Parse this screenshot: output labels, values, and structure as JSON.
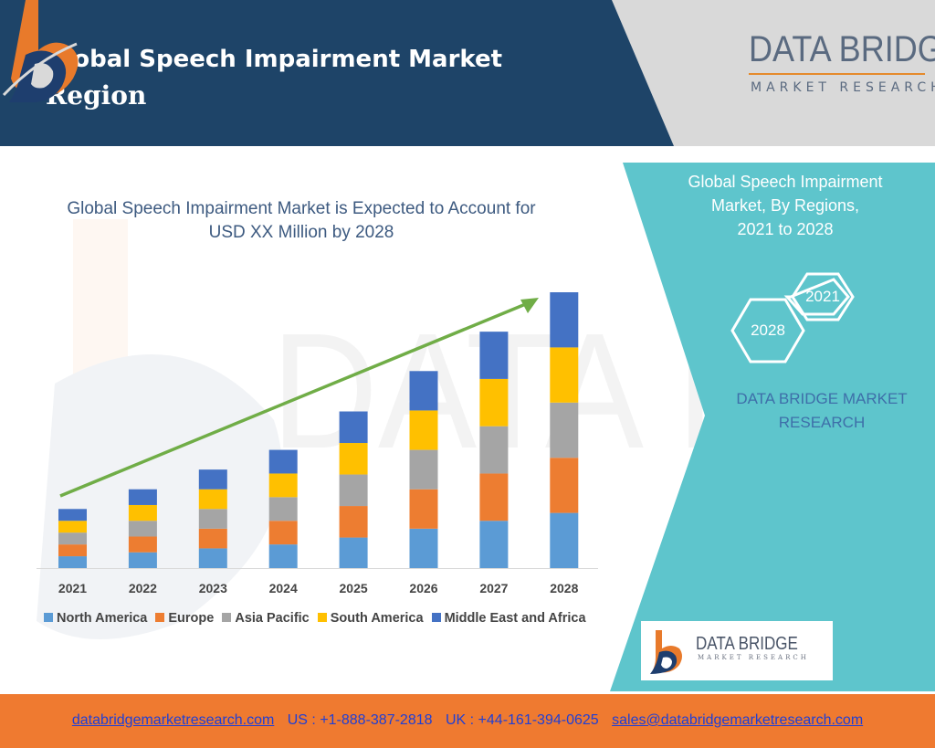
{
  "header": {
    "title_line1": "Global Speech Impairment Market",
    "title_line2": "Region",
    "colors": {
      "navy": "#1e4468",
      "grey": "#d9d9d9"
    }
  },
  "logo": {
    "brand": "DATA BRIDGE",
    "sub": "MARKET RESEARCH",
    "colors": {
      "orange": "#e87a2b",
      "navy": "#1e3e6e"
    }
  },
  "chart_data": {
    "type": "bar",
    "stacked": true,
    "title": "Global Speech Impairment Market is Expected to Account for USD XX Million by 2028",
    "title_line1": "Global Speech Impairment Market is Expected to Account for",
    "title_line2": "USD XX Million by 2028",
    "categories": [
      "2021",
      "2022",
      "2023",
      "2024",
      "2025",
      "2026",
      "2027",
      "2028"
    ],
    "series": [
      {
        "name": "North America",
        "color": "#5b9bd5",
        "values": [
          12,
          16,
          20,
          24,
          31,
          40,
          48,
          56
        ]
      },
      {
        "name": "Europe",
        "color": "#ed7d31",
        "values": [
          12,
          16,
          20,
          24,
          32,
          40,
          48,
          56
        ]
      },
      {
        "name": "Asia Pacific",
        "color": "#a5a5a5",
        "values": [
          12,
          16,
          20,
          24,
          32,
          40,
          48,
          56
        ]
      },
      {
        "name": "South America",
        "color": "#ffc000",
        "values": [
          12,
          16,
          20,
          24,
          32,
          40,
          48,
          56
        ]
      },
      {
        "name": "Middle East and Africa",
        "color": "#4472c4",
        "values": [
          12,
          16,
          20,
          24,
          32,
          40,
          48,
          56
        ]
      }
    ],
    "ylim": [
      0,
      280
    ],
    "grid": false,
    "legend": "bottom",
    "trend_arrow_color": "#70ad47"
  },
  "panel": {
    "title": [
      "Global Speech Impairment",
      "Market, By Regions,",
      "2021 to 2028"
    ],
    "hex_1": "2021",
    "hex_2": "2028",
    "brand": [
      "DATA BRIDGE MARKET",
      "RESEARCH"
    ],
    "bottom_logo_brand": "DATA BRIDGE",
    "bottom_logo_sub": "MARKET RESEARCH",
    "colors": {
      "teal": "#5ec5cc"
    }
  },
  "footer": {
    "website": "databridgemarketresearch.com",
    "us_phone": "US : +1-888-387-2818",
    "uk_phone": "UK : +44-161-394-0625",
    "email": "sales@databridgemarketresearch.com",
    "color": "#ef7a30"
  }
}
